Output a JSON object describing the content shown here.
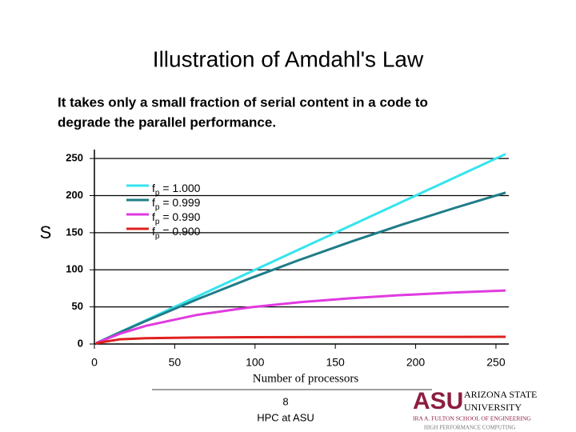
{
  "chart_data": {
    "type": "line",
    "title": "Illustration of Amdahl's Law",
    "subtitle": [
      "It takes only a small fraction of serial content in a code to",
      "degrade the parallel performance."
    ],
    "x_label": "Number of processors",
    "y_label": "S",
    "x": [
      1,
      16,
      32,
      64,
      96,
      128,
      160,
      192,
      224,
      256
    ],
    "series": [
      {
        "name": "fp = 1.000",
        "color": "#36e4ee",
        "values": [
          1,
          16,
          32,
          64,
          96,
          128,
          160,
          192,
          224,
          256
        ]
      },
      {
        "name": "fp = 0.999",
        "color": "#1f7d88",
        "values": [
          1,
          15.76,
          31.04,
          60.21,
          87.67,
          113.58,
          138.05,
          161.21,
          183.16,
          203.98
        ]
      },
      {
        "name": "fp = 0.990",
        "color": "#e03ae0",
        "values": [
          1,
          13.91,
          24.43,
          39.26,
          49.23,
          56.39,
          61.78,
          65.98,
          69.35,
          72.11
        ]
      },
      {
        "name": "fp = 0.900",
        "color": "#e0201e",
        "values": [
          1,
          6.4,
          7.8,
          8.77,
          9.14,
          9.34,
          9.47,
          9.55,
          9.61,
          9.66
        ]
      }
    ],
    "xlim": [
      0,
      258
    ],
    "ylim": [
      0,
      262
    ],
    "xticks": [
      0,
      50,
      100,
      150,
      200,
      250
    ],
    "yticks": [
      0,
      50,
      100,
      150,
      200,
      250
    ],
    "grid": true
  },
  "footer": {
    "page": "8",
    "text": "HPC at ASU",
    "logo": {
      "mark": "ASU",
      "line1": "ARIZONA STATE",
      "line2": "UNIVERSITY",
      "line3": "IRA A. FULTON SCHOOL OF ENGINEERING",
      "line4": "HIGH PERFORMANCE COMPUTING"
    }
  }
}
